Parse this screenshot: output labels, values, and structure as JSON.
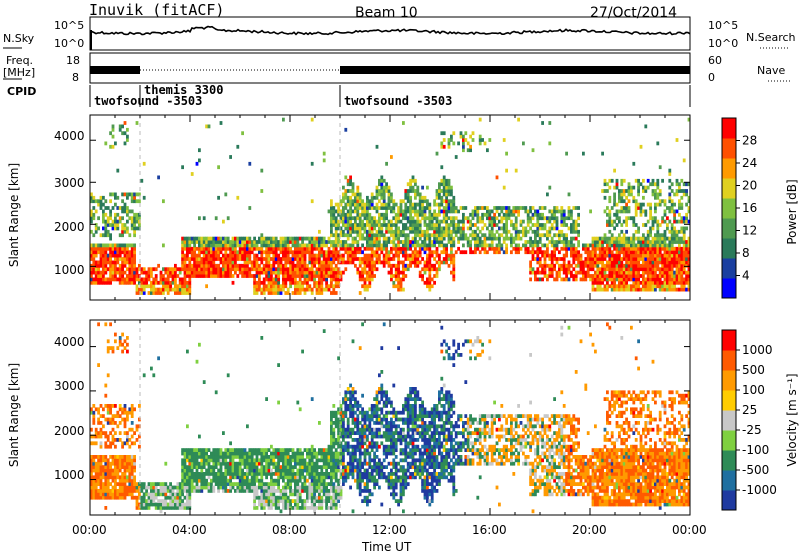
{
  "header": {
    "station": "Inuvik (fitACF)",
    "beam": "Beam 10",
    "date": "27/Oct/2014"
  },
  "strip_labels": {
    "nsky": "N.Sky",
    "nsearch": "N.Search",
    "freq_line1": "Freq.",
    "freq_line2": "[MHz]",
    "nave": "Nave",
    "cpid": "CPID",
    "nsky_ticks": [
      "10^5",
      "10^0"
    ],
    "freq_ticks": [
      "18",
      "8"
    ],
    "nave_ticks": [
      "60",
      "0"
    ],
    "nsearch_ticks": [
      "10^5",
      "10^0"
    ]
  },
  "cpid_segments": [
    {
      "start_h": 0.0,
      "end_h": 2.0,
      "label": "twofsound -3503"
    },
    {
      "start_h": 2.0,
      "end_h": 10.0,
      "label": "themis 3300"
    },
    {
      "start_h": 10.0,
      "end_h": 24.0,
      "label": "twofsound -3503"
    }
  ],
  "chart_data": [
    {
      "type": "heatmap",
      "name": "power",
      "xlabel": "",
      "ylabel": "Slant Range [km]",
      "x_range_h": [
        0,
        24
      ],
      "ylim": [
        200,
        4600
      ],
      "y_ticks": [
        "1000",
        "2000",
        "3000",
        "4000"
      ],
      "colorbar_label": "Power [dB]",
      "colorbar_ticks": [
        "28",
        "24",
        "20",
        "16",
        "12",
        "8",
        "4"
      ],
      "colorscale": [
        "#0000ff",
        "#1a3fa0",
        "#2a7a5a",
        "#4f9a50",
        "#7fc040",
        "#e0d020",
        "#ff9a00",
        "#ff5000",
        "#ff0000"
      ]
    },
    {
      "type": "heatmap",
      "name": "velocity",
      "xlabel": "Time UT",
      "ylabel": "Slant Range [km]",
      "x_range_h": [
        0,
        24
      ],
      "ylim": [
        200,
        4600
      ],
      "x_ticks": [
        "00:00",
        "04:00",
        "08:00",
        "12:00",
        "16:00",
        "20:00",
        "00:00"
      ],
      "y_ticks": [
        "1000",
        "2000",
        "3000",
        "4000"
      ],
      "colorbar_label": "Velocity [m s⁻¹]",
      "colorbar_ticks": [
        "1000",
        "500",
        "100",
        "25",
        "-25",
        "-100",
        "-500",
        "-1000"
      ],
      "colorscale": [
        "#1f3aa0",
        "#1f6fa0",
        "#2e8b57",
        "#7fd040",
        "#c8c8c8",
        "#ffcc00",
        "#ff9a00",
        "#ff5a00",
        "#ff0000"
      ]
    }
  ]
}
